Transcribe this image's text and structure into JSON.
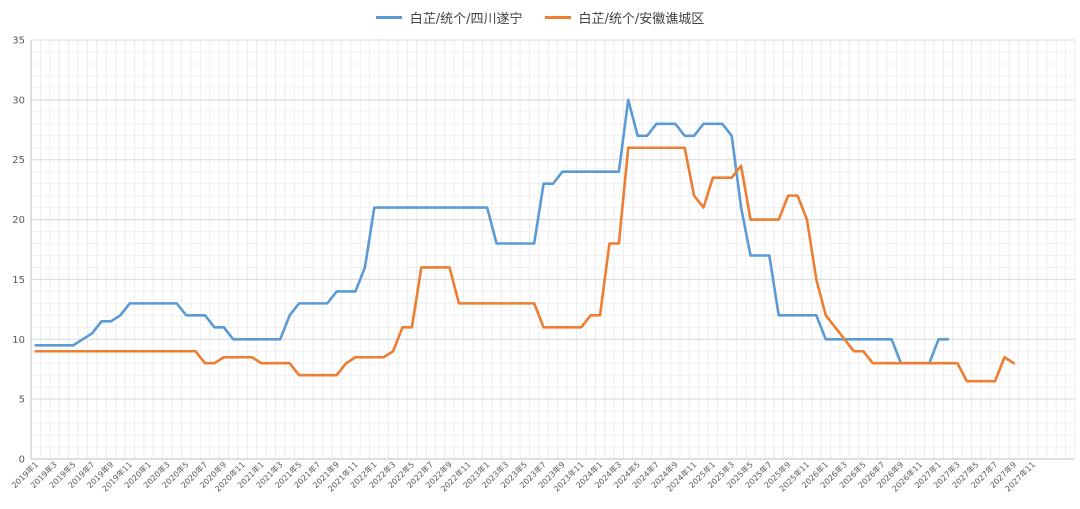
{
  "chart_data": {
    "type": "line",
    "legend_position": "top",
    "grid": true,
    "ylim": [
      0,
      35
    ],
    "yticks": [
      0,
      5,
      10,
      15,
      20,
      25,
      30,
      35
    ],
    "x_tick_labels": [
      "2019年1",
      "2019年3",
      "2019年5",
      "2019年7",
      "2019年9",
      "2019年11",
      "2020年1",
      "2020年3",
      "2020年5",
      "2020年7",
      "2020年9",
      "2020年11",
      "2021年1",
      "2021年3",
      "2021年5",
      "2021年7",
      "2021年9",
      "2021年11",
      "2022年1",
      "2022年3",
      "2022年5",
      "2022年7",
      "2022年9",
      "2022年11",
      "2023年1",
      "2023年3",
      "2023年5",
      "2023年7",
      "2023年9",
      "2023年11",
      "2024年1",
      "2024年3",
      "2024年5",
      "2024年7",
      "2024年9",
      "2024年11",
      "2025年1",
      "2025年3",
      "2025年5",
      "2025年7",
      "2025年9",
      "2025年11",
      "2026年1",
      "2026年3",
      "2026年5",
      "2026年7",
      "2026年9",
      "2026年11",
      "2027年1",
      "2027年3",
      "2027年5",
      "2027年7",
      "2027年9",
      "2027年11"
    ],
    "series": [
      {
        "name": "白芷/统个/四川遂宁",
        "color": "#5b9bd5",
        "values": [
          9.5,
          9.5,
          9.5,
          9.5,
          9.5,
          10,
          10.5,
          11.5,
          11.5,
          12,
          13,
          13,
          13,
          13,
          13,
          13,
          12,
          12,
          12,
          11,
          11,
          10,
          10,
          10,
          10,
          10,
          10,
          12,
          13,
          13,
          13,
          13,
          14,
          14,
          14,
          16,
          21,
          21,
          21,
          21,
          21,
          21,
          21,
          21,
          21,
          21,
          21,
          21,
          21,
          18,
          18,
          18,
          18,
          18,
          23,
          23,
          24,
          24,
          24,
          24,
          24,
          24,
          24,
          30,
          27,
          27,
          28,
          28,
          28,
          27,
          27,
          28,
          28,
          28,
          27,
          21,
          17,
          17,
          17,
          12,
          12,
          12,
          12,
          12,
          10,
          10,
          10,
          10,
          10,
          10,
          10,
          10,
          8,
          8,
          8,
          8,
          10,
          10
        ]
      },
      {
        "name": "白芷/统个/安徽谯城区",
        "color": "#ed7d31",
        "values": [
          9,
          9,
          9,
          9,
          9,
          9,
          9,
          9,
          9,
          9,
          9,
          9,
          9,
          9,
          9,
          9,
          9,
          9,
          8,
          8,
          8.5,
          8.5,
          8.5,
          8.5,
          8,
          8,
          8,
          8,
          7,
          7,
          7,
          7,
          7,
          8,
          8.5,
          8.5,
          8.5,
          8.5,
          9,
          11,
          11,
          16,
          16,
          16,
          16,
          13,
          13,
          13,
          13,
          13,
          13,
          13,
          13,
          13,
          11,
          11,
          11,
          11,
          11,
          12,
          12,
          18,
          18,
          26,
          26,
          26,
          26,
          26,
          26,
          26,
          22,
          21,
          23.5,
          23.5,
          23.5,
          24.5,
          20,
          20,
          20,
          20,
          22,
          22,
          20,
          15,
          12,
          11,
          10,
          9,
          9,
          8,
          8,
          8,
          8,
          8,
          8,
          8,
          8,
          8,
          8,
          6.5,
          6.5,
          6.5,
          6.5,
          8.5,
          8
        ]
      }
    ]
  }
}
